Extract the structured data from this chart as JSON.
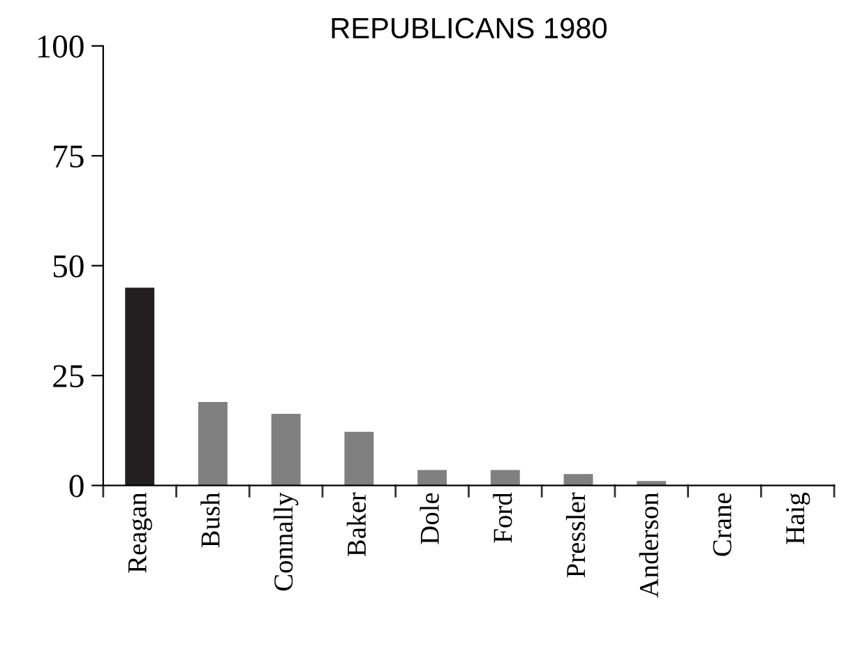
{
  "chart_data": {
    "type": "bar",
    "title": "REPUBLICANS 1980",
    "categories": [
      "Reagan",
      "Bush",
      "Connally",
      "Baker",
      "Dole",
      "Ford",
      "Pressler",
      "Anderson",
      "Crane",
      "Haig"
    ],
    "values": [
      45,
      19,
      16.3,
      12.2,
      3.5,
      3.5,
      2.6,
      1,
      0,
      0
    ],
    "colors": [
      "#231f20",
      "#808080",
      "#808080",
      "#808080",
      "#808080",
      "#808080",
      "#808080",
      "#808080",
      "#808080",
      "#808080"
    ],
    "ylim": [
      0,
      100
    ],
    "yticks": [
      0,
      25,
      50,
      75,
      100
    ],
    "grid": false,
    "legend": false
  }
}
